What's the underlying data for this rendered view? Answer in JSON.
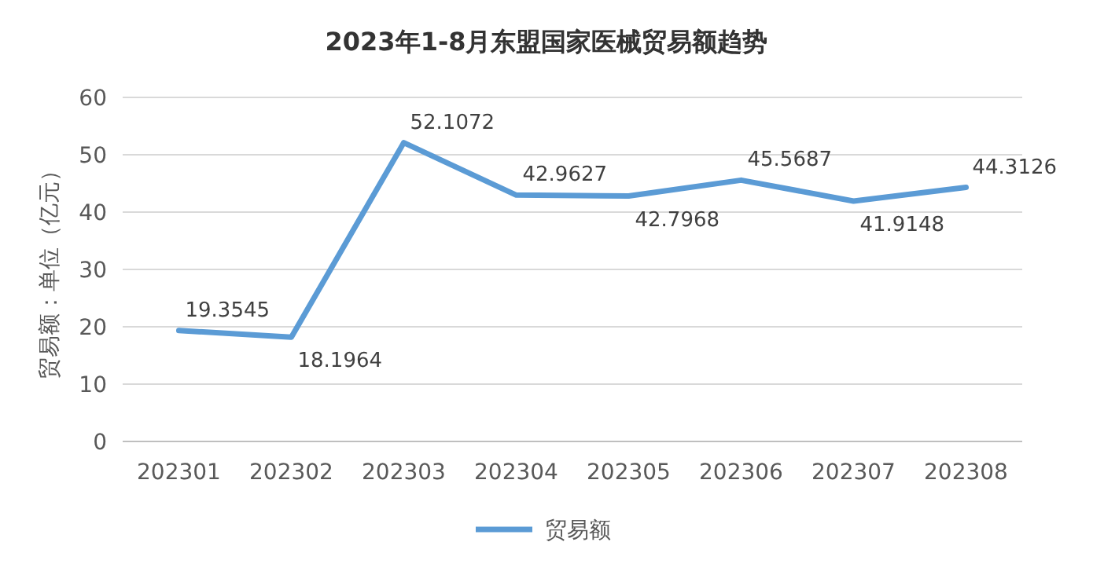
{
  "chart_data": {
    "type": "line",
    "title": "2023年1-8月东盟国家医械贸易额趋势",
    "ylabel": "贸易额：单位（亿元）",
    "categories": [
      "202301",
      "202302",
      "202303",
      "202304",
      "202305",
      "202306",
      "202307",
      "202308"
    ],
    "series": [
      {
        "name": "贸易额",
        "color": "#5b9bd5",
        "values": [
          19.3545,
          18.1964,
          52.1072,
          42.9627,
          42.7968,
          45.5687,
          41.9148,
          44.3126
        ]
      }
    ],
    "ylim": [
      0,
      60
    ],
    "yticks": [
      0,
      10,
      20,
      30,
      40,
      50,
      60
    ],
    "grid": "y",
    "legend": "bottom",
    "data_labels": true,
    "marker": "none",
    "line_style": "solid"
  }
}
